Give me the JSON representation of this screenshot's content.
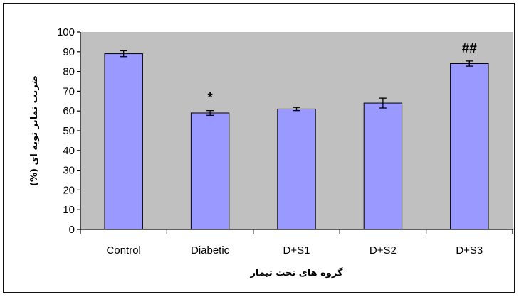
{
  "chart_data": {
    "type": "bar",
    "title": "",
    "categories": [
      "Control",
      "Diabetic",
      "D+S1",
      "D+S2",
      "D+S3"
    ],
    "values": [
      89,
      59,
      61,
      64,
      84
    ],
    "errors": [
      1.5,
      1.2,
      0.8,
      2.5,
      1.3
    ],
    "annotations": [
      "",
      "*",
      "",
      "",
      "##"
    ],
    "xlabel": "گروه های تحت تیمار",
    "ylabel": "ضریب تمایز توبه ای (%)",
    "ylim": [
      0,
      100
    ],
    "yticks": [
      0,
      10,
      20,
      30,
      40,
      50,
      60,
      70,
      80,
      90,
      100
    ],
    "grid": false,
    "legend": "none",
    "colors": {
      "bar_fill": "#9999ff",
      "bar_stroke": "#000000",
      "plot_background": "#c0c0c0"
    }
  }
}
